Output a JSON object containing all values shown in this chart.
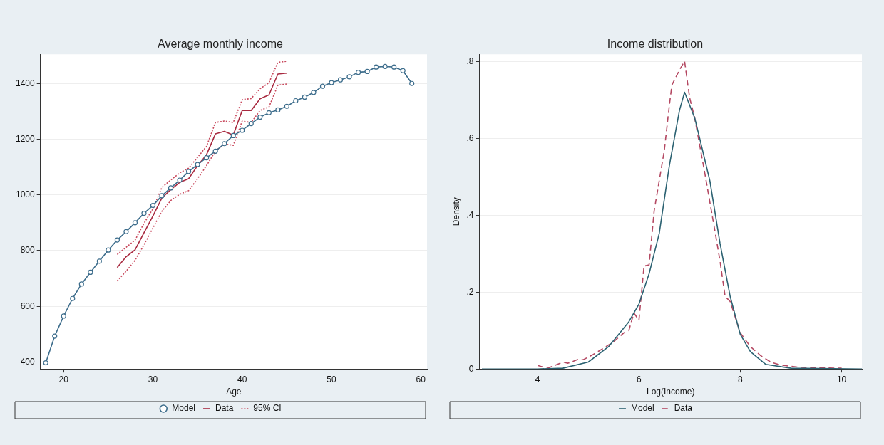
{
  "chart_data": [
    {
      "type": "line",
      "title": "Average monthly income",
      "xlabel": "Age",
      "xlim": [
        17.4,
        60.7
      ],
      "xticks": [
        20,
        30,
        40,
        50,
        60
      ],
      "ylim": [
        375,
        1505
      ],
      "yticks": [
        400,
        600,
        800,
        1000,
        1200,
        1400
      ],
      "grid": "y",
      "legend": "bottom",
      "series": [
        {
          "name": "Model",
          "color": "#3d6d8c",
          "marker": "circle",
          "line_style": "solid",
          "x": [
            18,
            19,
            20,
            21,
            22,
            23,
            24,
            25,
            26,
            27,
            28,
            29,
            30,
            31,
            32,
            33,
            34,
            35,
            36,
            37,
            38,
            39,
            40,
            41,
            42,
            43,
            44,
            45,
            46,
            47,
            48,
            49,
            50,
            51,
            52,
            53,
            54,
            55,
            56,
            57,
            58,
            59
          ],
          "values": [
            397,
            493,
            565,
            628,
            680,
            722,
            762,
            802,
            838,
            868,
            900,
            934,
            962,
            997,
            1025,
            1053,
            1084,
            1109,
            1133,
            1157,
            1184,
            1213,
            1232,
            1256,
            1279,
            1295,
            1305,
            1318,
            1338,
            1351,
            1368,
            1390,
            1403,
            1413,
            1424,
            1440,
            1443,
            1459,
            1461,
            1459,
            1446,
            1400
          ]
        },
        {
          "name": "Data",
          "color": "#a82a40",
          "marker": "none",
          "line_style": "solid",
          "x": [
            26,
            27,
            28,
            29,
            30,
            31,
            32,
            33,
            34,
            35,
            36,
            37,
            38,
            39,
            40,
            41,
            42,
            43,
            44,
            45
          ],
          "values": [
            739,
            778,
            803,
            864,
            924,
            989,
            1019,
            1045,
            1058,
            1105,
            1144,
            1219,
            1228,
            1215,
            1303,
            1303,
            1345,
            1359,
            1434,
            1437
          ]
        },
        {
          "name": "95% CI",
          "color": "#c8485c",
          "marker": "none",
          "line_style": "dotted",
          "x": [
            26,
            27,
            28,
            29,
            30,
            31,
            32,
            33,
            34,
            35,
            36,
            37,
            38,
            39,
            40,
            41,
            42,
            43,
            44,
            45
          ],
          "values": [
            786,
            812,
            838,
            898,
            950,
            1027,
            1053,
            1079,
            1096,
            1135,
            1174,
            1260,
            1265,
            1260,
            1342,
            1346,
            1381,
            1403,
            1476,
            1480
          ]
        },
        {
          "color": "#c8485c",
          "marker": "none",
          "line_style": "dotted",
          "x": [
            26,
            27,
            28,
            29,
            30,
            31,
            32,
            33,
            34,
            35,
            36,
            37,
            38,
            39,
            40,
            41,
            42,
            43,
            44,
            45
          ],
          "values": [
            691,
            726,
            765,
            821,
            881,
            941,
            980,
            1002,
            1015,
            1058,
            1105,
            1157,
            1183,
            1178,
            1265,
            1260,
            1303,
            1316,
            1394,
            1398
          ]
        }
      ]
    },
    {
      "type": "line",
      "title": "Income distribution",
      "xlabel": "Log(Income)",
      "ylabel": "Density",
      "xlim": [
        2.85,
        10.4
      ],
      "xticks": [
        4,
        6,
        8,
        10
      ],
      "ylim": [
        0,
        0.82
      ],
      "yticks": [
        0,
        {
          "value": 0.2,
          "label": ".2"
        },
        {
          "value": 0.4,
          "label": ".4"
        },
        {
          "value": 0.6,
          "label": ".6"
        },
        {
          "value": 0.8,
          "label": ".8"
        }
      ],
      "grid": "y",
      "legend": "bottom",
      "series": [
        {
          "name": "Model",
          "color": "#2c6272",
          "marker": "none",
          "line_style": "solid",
          "x": [
            2.9,
            4,
            4.5,
            5,
            5.4,
            5.8,
            6,
            6.2,
            6.4,
            6.6,
            6.8,
            6.9,
            7.1,
            7.2,
            7.4,
            7.6,
            7.8,
            8,
            8.2,
            8.5,
            9,
            10.4
          ],
          "values": [
            0,
            0,
            0.002,
            0.018,
            0.058,
            0.123,
            0.169,
            0.248,
            0.353,
            0.53,
            0.674,
            0.721,
            0.654,
            0.6,
            0.49,
            0.327,
            0.189,
            0.09,
            0.045,
            0.012,
            0.002,
            0
          ]
        },
        {
          "name": "Data",
          "color": "#b44862",
          "marker": "none",
          "line_style": "dashed",
          "x": [
            4,
            4.2,
            4.5,
            4.6,
            4.8,
            4.9,
            5.1,
            5.3,
            5.5,
            5.7,
            5.8,
            5.9,
            6,
            6.1,
            6.2,
            6.3,
            6.5,
            6.6,
            6.65,
            6.8,
            6.9,
            7,
            7.1,
            7.3,
            7.5,
            7.6,
            7.7,
            7.8,
            8,
            8.2,
            8.4,
            8.6,
            8.8,
            9.2,
            10
          ],
          "values": [
            0.009,
            0.002,
            0.018,
            0.015,
            0.025,
            0.024,
            0.038,
            0.054,
            0.071,
            0.094,
            0.1,
            0.146,
            0.127,
            0.268,
            0.271,
            0.412,
            0.569,
            0.687,
            0.74,
            0.779,
            0.802,
            0.707,
            0.654,
            0.51,
            0.359,
            0.281,
            0.189,
            0.176,
            0.094,
            0.058,
            0.035,
            0.018,
            0.01,
            0.004,
            0.002
          ]
        }
      ]
    }
  ]
}
